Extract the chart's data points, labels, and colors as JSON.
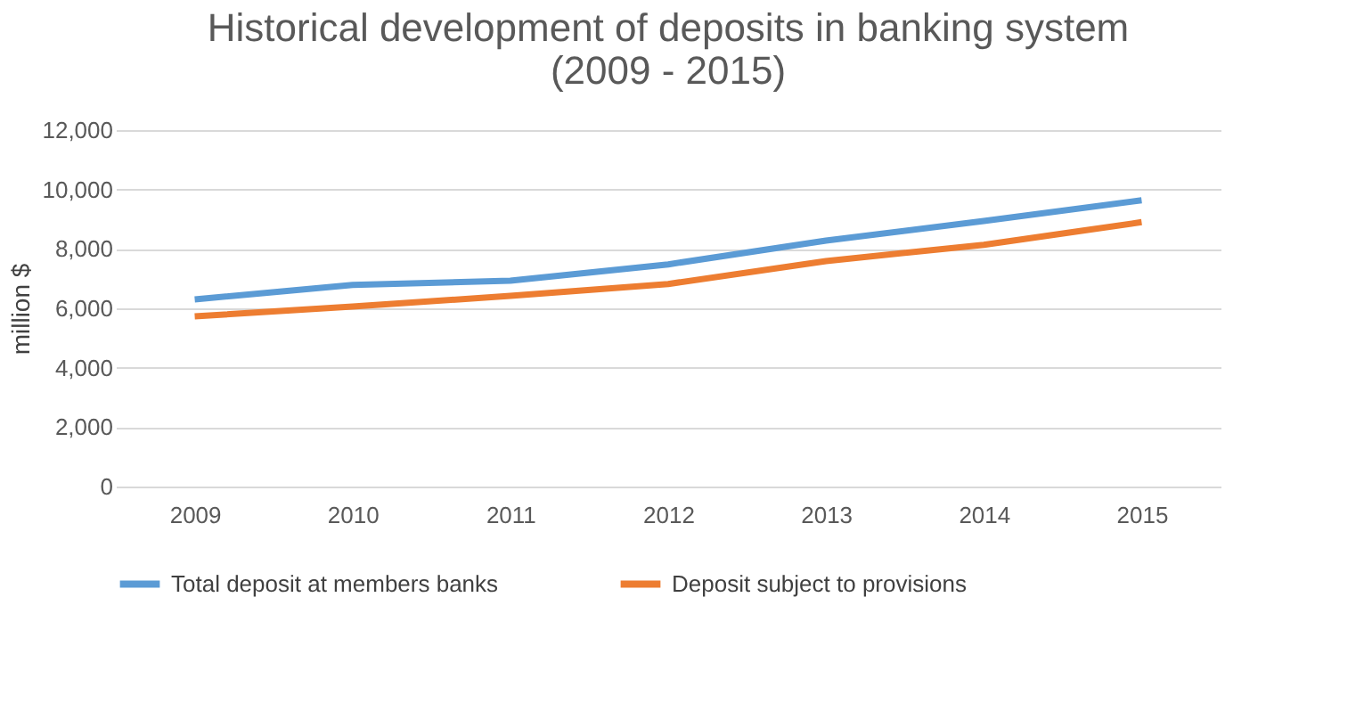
{
  "chart_data": {
    "type": "line",
    "title": [
      "Historical development of deposits in banking system",
      "(2009 - 2015)"
    ],
    "ylabel": "million $",
    "categories": [
      "2009",
      "2010",
      "2011",
      "2012",
      "2013",
      "2014",
      "2015"
    ],
    "series": [
      {
        "name": "Total deposit at members banks",
        "color": "#5b9bd5",
        "values": [
          6300,
          6790,
          6930,
          7480,
          8280,
          8940,
          9640
        ]
      },
      {
        "name": "Deposit subject to provisions",
        "color": "#ed7d31",
        "values": [
          5730,
          6060,
          6420,
          6820,
          7590,
          8140,
          8900
        ]
      }
    ],
    "ylim": [
      0,
      12000
    ],
    "yticks": [
      0,
      {
        "value": 2000,
        "label": "2,000"
      },
      {
        "value": 4000,
        "label": "4,000"
      },
      {
        "value": 6000,
        "label": "6,000"
      },
      {
        "value": 8000,
        "label": "8,000"
      },
      {
        "value": 10000,
        "label": "10,000"
      },
      {
        "value": 12000,
        "label": "12,000"
      }
    ],
    "grid": "y",
    "legend": "bottom",
    "marker": "none",
    "line_style": "solid"
  }
}
